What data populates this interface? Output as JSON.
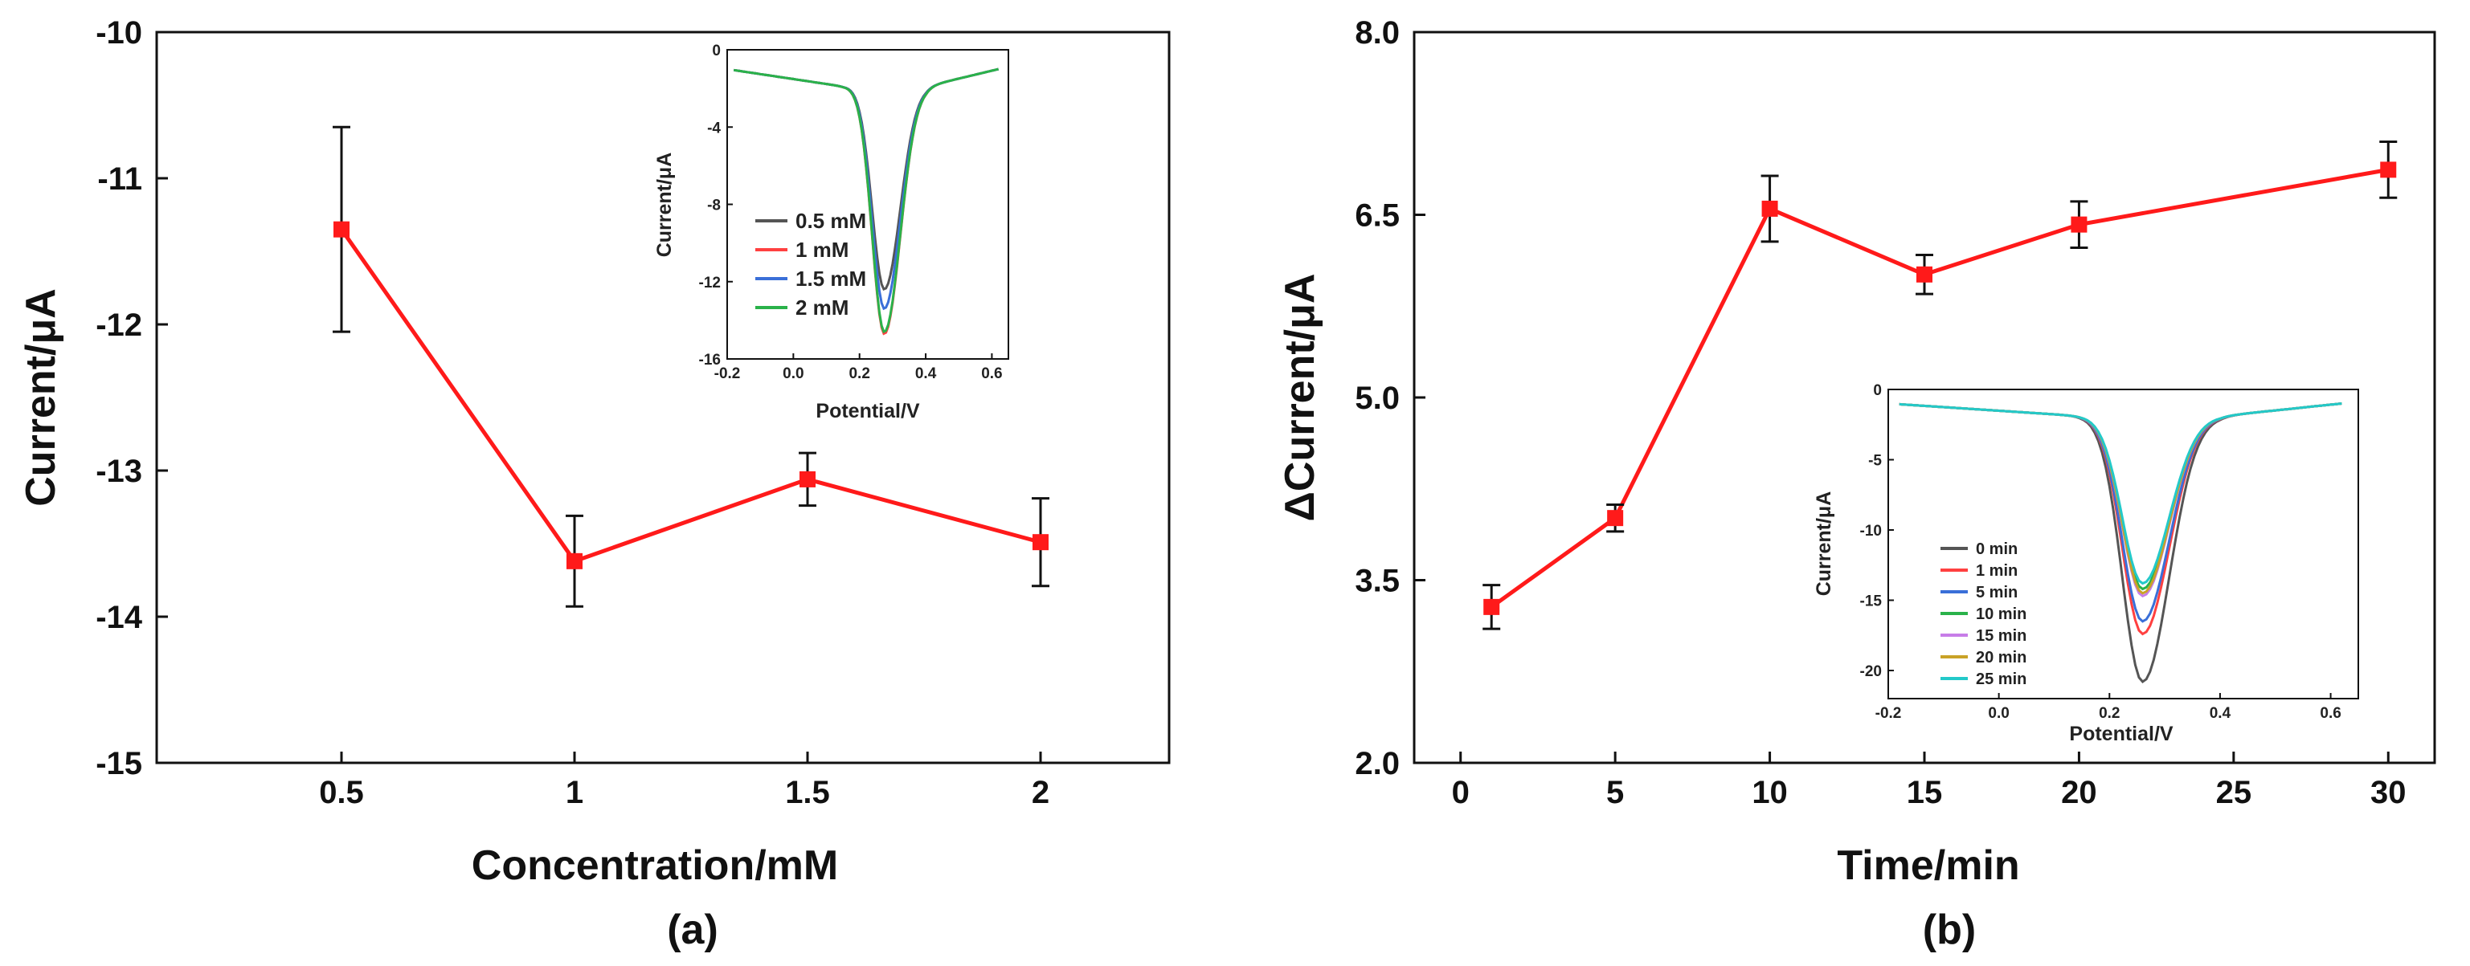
{
  "chart_data": [
    {
      "type": "line",
      "panel_label": "(a)",
      "xlabel": "Concentration/mM",
      "ylabel": "Current/μA",
      "categories": [
        "0.5",
        "1",
        "1.5",
        "2"
      ],
      "x_ticks": [
        "0.5",
        "1",
        "1.5",
        "2"
      ],
      "y_ticks": [
        "-10",
        "-11",
        "-12",
        "-13",
        "-14",
        "-15"
      ],
      "ylim": [
        -15,
        -10
      ],
      "series": [
        {
          "name": "current",
          "color": "#ff1a1a",
          "x": [
            0.5,
            1,
            1.5,
            2
          ],
          "values": [
            -11.35,
            -13.62,
            -13.06,
            -13.49
          ],
          "errors": [
            0.7,
            0.31,
            0.18,
            0.3
          ]
        }
      ],
      "inset": {
        "type": "line",
        "xlabel": "Potential/V",
        "ylabel": "Current/μA",
        "x_ticks": [
          "-0.2",
          "0.0",
          "0.2",
          "0.4",
          "0.6"
        ],
        "y_ticks": [
          "0",
          "-4",
          "-8",
          "-12",
          "-16"
        ],
        "xlim": [
          -0.2,
          0.65
        ],
        "ylim": [
          -16,
          0
        ],
        "legend_position": "bottom-left",
        "peak_potential": 0.275,
        "series": [
          {
            "name": "0.5 mM",
            "color": "#555555",
            "peak": -12.4
          },
          {
            "name": "1 mM",
            "color": "#ff4040",
            "peak": -14.7
          },
          {
            "name": "1.5 mM",
            "color": "#3a6fd8",
            "peak": -13.4
          },
          {
            "name": "2 mM",
            "color": "#2ab24a",
            "peak": -14.6
          }
        ]
      }
    },
    {
      "type": "line",
      "panel_label": "(b)",
      "xlabel": "Time/min",
      "ylabel": "ΔCurrent/μA",
      "x_ticks": [
        "0",
        "5",
        "10",
        "15",
        "20",
        "25",
        "30"
      ],
      "y_ticks": [
        "8.0",
        "6.5",
        "5.0",
        "3.5",
        "2.0"
      ],
      "xlim": [
        -1.5,
        31.5
      ],
      "ylim": [
        2.0,
        8.0
      ],
      "series": [
        {
          "name": "delta current",
          "color": "#ff1a1a",
          "x": [
            1,
            5,
            10,
            15,
            20,
            30
          ],
          "values": [
            3.28,
            4.01,
            6.55,
            6.01,
            6.42,
            6.87
          ],
          "errors": [
            0.18,
            0.11,
            0.27,
            0.16,
            0.19,
            0.23
          ]
        }
      ],
      "inset": {
        "type": "line",
        "xlabel": "Potential/V",
        "ylabel": "Current/μA",
        "x_ticks": [
          "-0.2",
          "0.0",
          "0.2",
          "0.4",
          "0.6"
        ],
        "y_ticks": [
          "0",
          "-5",
          "-10",
          "-15",
          "-20"
        ],
        "xlim": [
          -0.2,
          0.65
        ],
        "ylim": [
          -22,
          0
        ],
        "legend_position": "bottom-left",
        "peak_potential": 0.26,
        "series": [
          {
            "name": "0 min",
            "color": "#555555",
            "peak": -20.8
          },
          {
            "name": "1 min",
            "color": "#ff4040",
            "peak": -17.4
          },
          {
            "name": "5 min",
            "color": "#3a6fd8",
            "peak": -16.5
          },
          {
            "name": "10 min",
            "color": "#2ab24a",
            "peak": -14.2
          },
          {
            "name": "15 min",
            "color": "#c77de8",
            "peak": -14.7
          },
          {
            "name": "20 min",
            "color": "#c9a227",
            "peak": -14.5
          },
          {
            "name": "25 min",
            "color": "#23c9c9",
            "peak": -13.8
          }
        ]
      }
    }
  ]
}
